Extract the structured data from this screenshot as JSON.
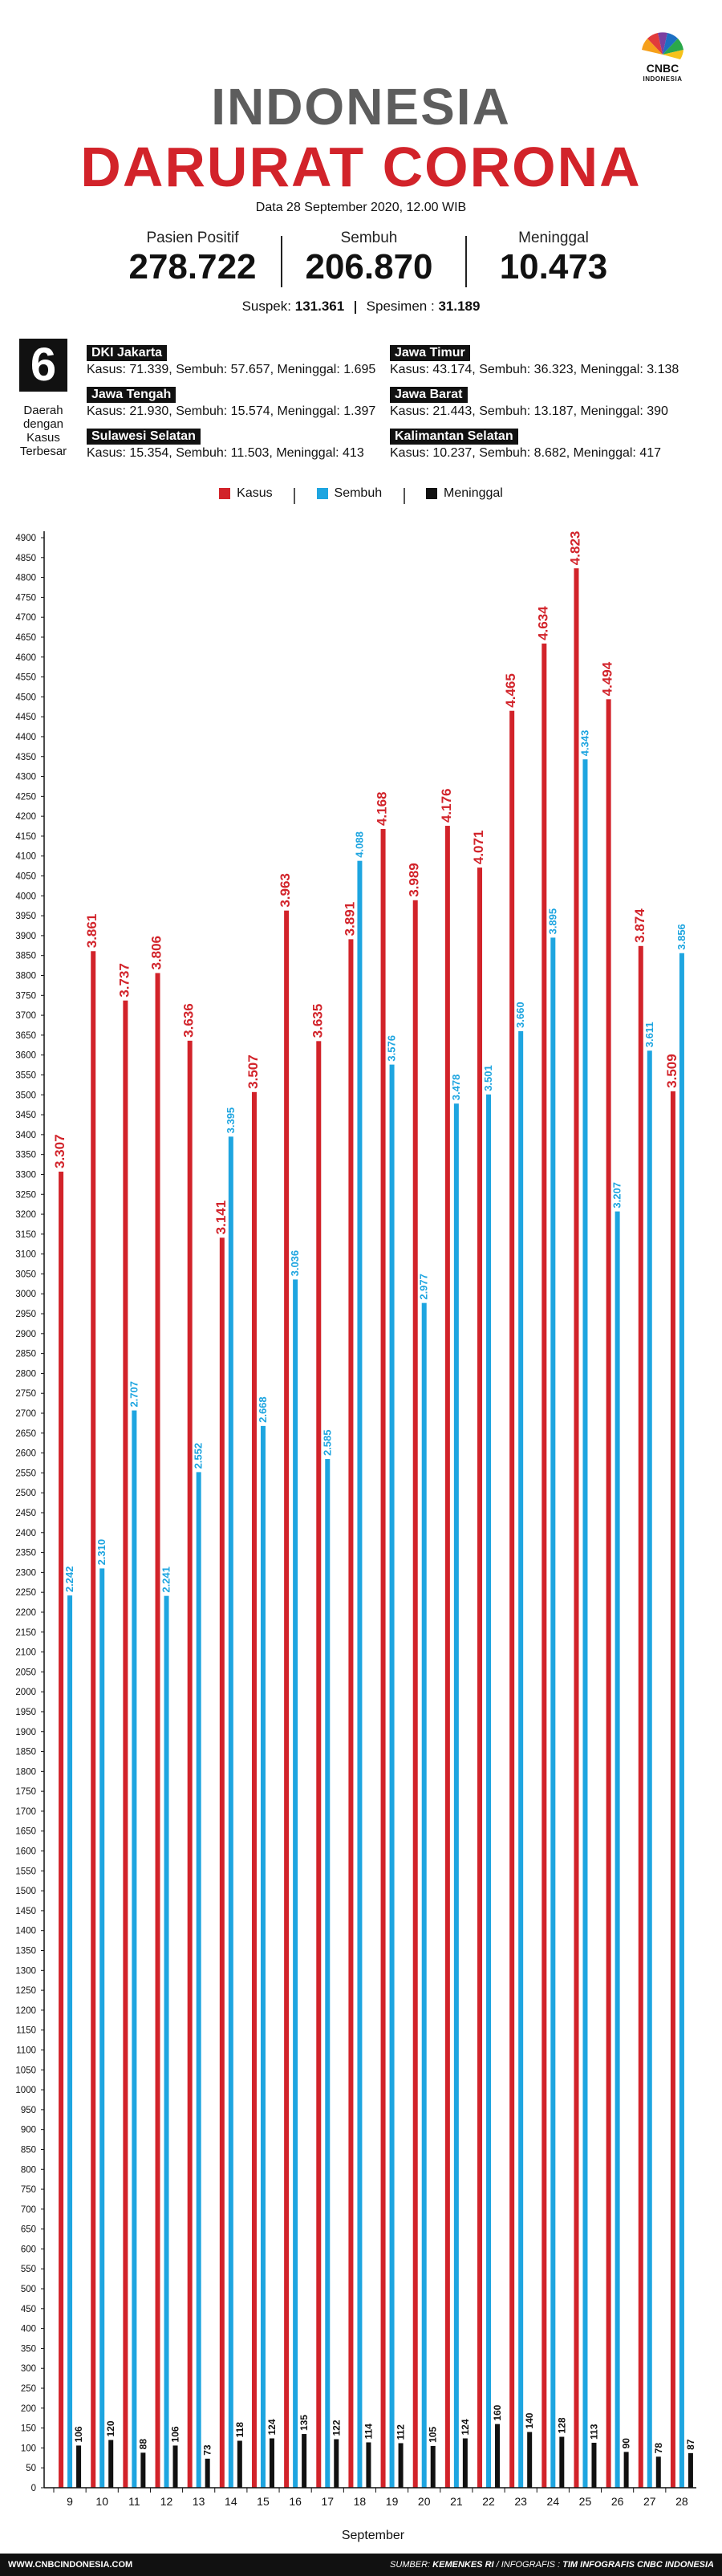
{
  "brand": {
    "logo": "CNBC",
    "logo_sub": "INDONESIA"
  },
  "header": {
    "title_line1": "INDONESIA",
    "title_line2": "DARURAT CORONA",
    "date": "Data 28 September 2020, 12.00 WIB"
  },
  "stats": [
    {
      "label": "Pasien Positif",
      "value": "278.722"
    },
    {
      "label": "Sembuh",
      "value": "206.870"
    },
    {
      "label": "Meninggal",
      "value": "10.473"
    }
  ],
  "suspek": {
    "label": "Suspek:",
    "value": "131.361",
    "spesimen_label": "Spesimen :",
    "spesimen_value": "31.189"
  },
  "regions_box": {
    "number": "6",
    "description": "Daerah dengan Kasus Terbesar",
    "regions": [
      {
        "name": "DKI Jakarta",
        "info": "Kasus: 71.339, Sembuh: 57.657, Meninggal: 1.695"
      },
      {
        "name": "Jawa Timur",
        "info": "Kasus: 43.174, Sembuh: 36.323, Meninggal: 3.138"
      },
      {
        "name": "Jawa Tengah",
        "info": "Kasus: 21.930, Sembuh: 15.574, Meninggal: 1.397"
      },
      {
        "name": "Jawa Barat",
        "info": "Kasus: 21.443, Sembuh: 13.187, Meninggal: 390"
      },
      {
        "name": "Sulawesi Selatan",
        "info": "Kasus: 15.354, Sembuh: 11.503, Meninggal: 413"
      },
      {
        "name": "Kalimantan Selatan",
        "info": "Kasus: 10.237, Sembuh: 8.682, Meninggal: 417"
      }
    ]
  },
  "colors": {
    "kasus": "#d2232a",
    "sembuh": "#1ea5e0",
    "meninggal": "#111111",
    "title_gray": "#5d5d5d"
  },
  "chart_data": {
    "type": "bar",
    "xlabel": "September",
    "ylabel": "",
    "ylim": [
      0,
      4900
    ],
    "ytick_step": 50,
    "grid": false,
    "legend_position": "top-center",
    "categories": [
      "9",
      "10",
      "11",
      "12",
      "13",
      "14",
      "15",
      "16",
      "17",
      "18",
      "19",
      "20",
      "21",
      "22",
      "23",
      "24",
      "25",
      "26",
      "27",
      "28"
    ],
    "series": [
      {
        "name": "Kasus",
        "color": "#d2232a",
        "values": [
          3307,
          3861,
          3737,
          3806,
          3636,
          3141,
          3507,
          3963,
          3635,
          3891,
          4168,
          3989,
          4176,
          4071,
          4465,
          4634,
          4823,
          4494,
          3874,
          3509
        ],
        "labels": [
          "3.307",
          "3.861",
          "3.737",
          "3.806",
          "3.636",
          "3.141",
          "3.507",
          "3.963",
          "3.635",
          "3.891",
          "4.168",
          "3.989",
          "4.176",
          "4.071",
          "4.465",
          "4.634",
          "4.823",
          "4.494",
          "3.874",
          "3.509"
        ]
      },
      {
        "name": "Sembuh",
        "color": "#1ea5e0",
        "values": [
          2242,
          2310,
          2707,
          2241,
          2552,
          3395,
          2668,
          3036,
          2585,
          4088,
          3576,
          2977,
          3478,
          3501,
          3660,
          3895,
          4343,
          3207,
          3611,
          3856
        ],
        "labels": [
          "2.242",
          "2.310",
          "2.707",
          "2.241",
          "2.552",
          "3.395",
          "2.668",
          "3.036",
          "2.585",
          "4.088",
          "3.576",
          "2.977",
          "3.478",
          "3.501",
          "3.660",
          "3.895",
          "4.343",
          "3.207",
          "3.611",
          "3.856"
        ]
      },
      {
        "name": "Meninggal",
        "color": "#111111",
        "values": [
          106,
          120,
          88,
          106,
          73,
          118,
          124,
          135,
          122,
          114,
          112,
          105,
          124,
          160,
          140,
          128,
          113,
          90,
          78,
          87
        ],
        "labels": [
          "106",
          "120",
          "88",
          "106",
          "73",
          "118",
          "124",
          "135",
          "122",
          "114",
          "112",
          "105",
          "124",
          "160",
          "140",
          "128",
          "113",
          "90",
          "78",
          "87"
        ]
      }
    ]
  },
  "footer": {
    "website": "WWW.CNBCINDONESIA.COM",
    "source_label": "SUMBER:",
    "source_value": "KEMENKES RI",
    "credit_label": "/ INFOGRAFIS :",
    "credit_value": "TIM INFOGRAFIS CNBC INDONESIA"
  }
}
